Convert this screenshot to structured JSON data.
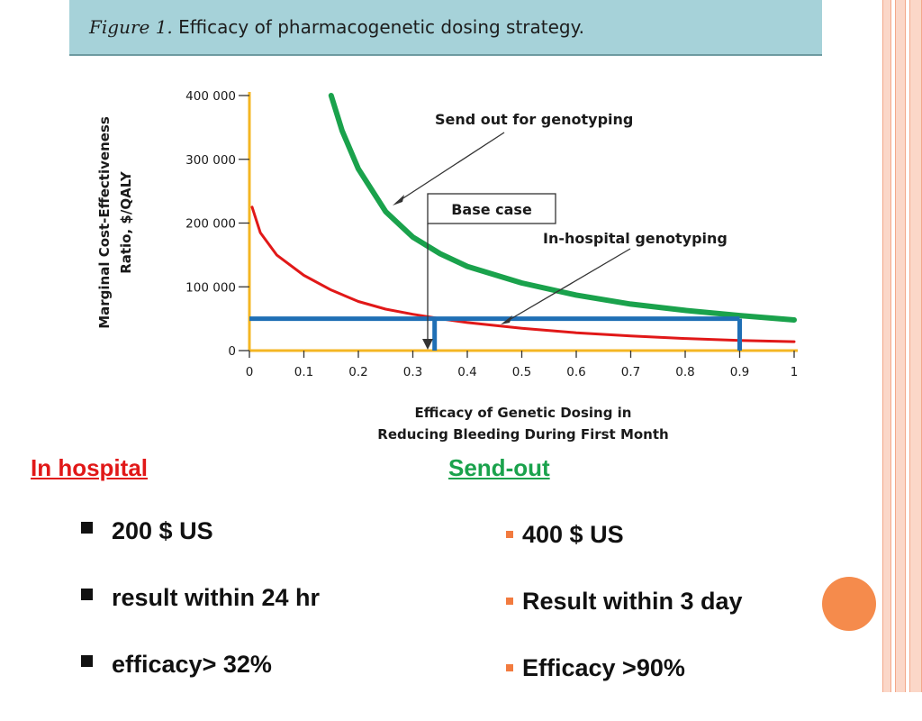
{
  "slide": {
    "figure_label": "Figure 1.",
    "figure_title": "Efficacy of pharmacogenetic dosing strategy.",
    "in_hospital": {
      "heading": "In hospital",
      "bullets": [
        "200 $ US",
        "result within 24 hr",
        "efficacy> 32%"
      ]
    },
    "send_out": {
      "heading": "Send-out",
      "bullets": [
        "400 $ US",
        "Result within 3 day",
        "Efficacy >90%"
      ]
    },
    "colors": {
      "in_hospital": "#e11818",
      "send_out": "#1aa24c",
      "threshold": "#1f6fb5",
      "axis_highlight": "#f4b623",
      "header_bg": "#a6d2d9",
      "accent_orange": "#f58b4c"
    }
  },
  "chart_data": {
    "type": "line",
    "xlabel_lines": [
      "Efficacy of Genetic Dosing in",
      "Reducing Bleeding During First Month"
    ],
    "ylabel_lines": [
      "Marginal Cost-Effectiveness",
      "Ratio, $/QALY"
    ],
    "xlim": [
      0,
      1
    ],
    "ylim": [
      0,
      400000
    ],
    "x_ticks": [
      0,
      0.1,
      0.2,
      0.3,
      0.4,
      0.5,
      0.6,
      0.7,
      0.8,
      0.9,
      1
    ],
    "x_tick_labels": [
      "0",
      "0.1",
      "0.2",
      "0.3",
      "0.4",
      "0.5",
      "0.6",
      "0.7",
      "0.8",
      "0.9",
      "1"
    ],
    "y_ticks": [
      0,
      100000,
      200000,
      300000,
      400000
    ],
    "y_tick_labels": [
      "0",
      "100 000",
      "200 000",
      "300 000",
      "400 000"
    ],
    "grid": false,
    "series": [
      {
        "name": "In-hospital genotyping",
        "color": "#e11818",
        "x": [
          0.005,
          0.02,
          0.05,
          0.1,
          0.15,
          0.2,
          0.25,
          0.3,
          0.35,
          0.4,
          0.5,
          0.6,
          0.7,
          0.8,
          0.9,
          1.0
        ],
        "y": [
          225000,
          185000,
          150000,
          118000,
          95000,
          77000,
          65000,
          57000,
          50000,
          44000,
          35000,
          28000,
          23000,
          19000,
          16000,
          14000
        ]
      },
      {
        "name": "Send out for genotyping",
        "color": "#1aa24c",
        "x": [
          0.15,
          0.17,
          0.2,
          0.25,
          0.3,
          0.35,
          0.4,
          0.5,
          0.6,
          0.7,
          0.8,
          0.9,
          1.0
        ],
        "y": [
          400000,
          345000,
          285000,
          218000,
          178000,
          152000,
          132000,
          106000,
          87000,
          73000,
          63000,
          55000,
          48000
        ]
      }
    ],
    "threshold": {
      "y": 50000,
      "x_in_hospital": 0.34,
      "x_send_out": 0.9
    },
    "annotations": [
      {
        "text": "Send out for genotyping",
        "target_series": "Send out for genotyping"
      },
      {
        "text": "In-hospital genotyping",
        "target_series": "In-hospital genotyping"
      },
      {
        "text": "Base case",
        "boxed": true
      }
    ]
  }
}
